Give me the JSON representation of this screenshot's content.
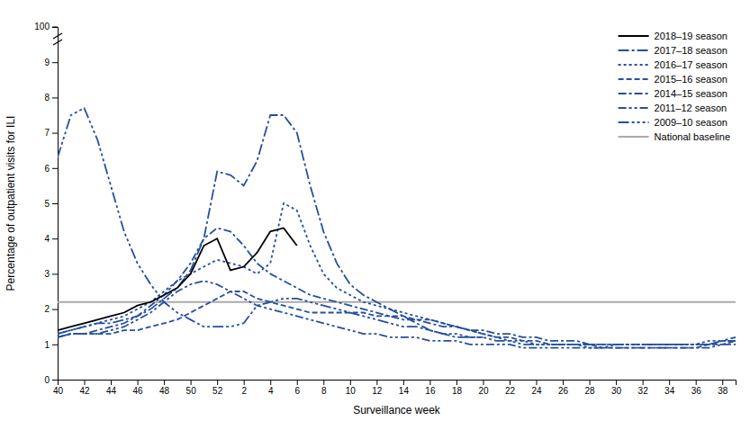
{
  "chart_data": {
    "type": "line",
    "x_label": "Surveillance week",
    "y_label": "Percentage of outpatient visits for ILI",
    "categories": [
      "40",
      null,
      "42",
      null,
      "44",
      null,
      "46",
      null,
      "48",
      null,
      "50",
      null,
      "52",
      null,
      "2",
      null,
      "4",
      null,
      "6",
      null,
      "8",
      null,
      "10",
      null,
      "12",
      null,
      "14",
      null,
      "16",
      null,
      "18",
      null,
      "20",
      null,
      "22",
      null,
      "24",
      null,
      "26",
      null,
      "28",
      null,
      "30",
      null,
      "32",
      null,
      "34",
      null,
      "36",
      null,
      "38",
      null
    ],
    "ylim": [
      0,
      10
    ],
    "yticks": [
      0,
      1,
      2,
      3,
      4,
      5,
      6,
      7,
      8,
      9
    ],
    "grid": false,
    "legend": "upper right",
    "series": [
      {
        "name": "2009–10 season",
        "color": "#254fa0",
        "line_style": "long-dash-dot-dot-dot",
        "values": [
          6.3,
          7.5,
          7.7,
          6.8,
          5.5,
          4.2,
          3.3,
          2.7,
          2.2,
          1.9,
          1.7,
          1.5,
          1.5,
          1.5,
          1.6,
          2.1,
          2.2,
          2.3,
          2.3,
          2.2,
          2.1,
          2.0,
          1.9,
          1.8,
          1.7,
          1.6,
          1.5,
          1.5,
          1.4,
          1.3,
          1.3,
          1.2,
          1.2,
          1.1,
          1.1,
          1.0,
          1.0,
          1.0,
          1.0,
          1.0,
          1.0,
          1.0,
          1.0,
          1.0,
          1.0,
          1.0,
          1.0,
          1.0,
          1.0,
          1.0,
          1.1,
          1.2
        ]
      },
      {
        "name": "2011–12 season",
        "color": "#254fa0",
        "line_style": "dash-dot-dot",
        "values": [
          1.2,
          1.3,
          1.3,
          1.3,
          1.4,
          1.5,
          1.7,
          1.9,
          2.2,
          2.5,
          2.7,
          2.8,
          2.7,
          2.5,
          2.3,
          2.1,
          2.0,
          1.9,
          1.8,
          1.7,
          1.6,
          1.5,
          1.4,
          1.3,
          1.3,
          1.2,
          1.2,
          1.2,
          1.1,
          1.1,
          1.1,
          1.0,
          1.0,
          1.0,
          1.0,
          0.9,
          0.9,
          0.9,
          0.9,
          0.9,
          0.9,
          0.9,
          0.9,
          0.9,
          0.9,
          0.9,
          0.9,
          0.9,
          0.9,
          0.9,
          1.0,
          1.0
        ]
      },
      {
        "name": "2014–15 season",
        "color": "#254fa0",
        "line_style": "dash-dot",
        "values": [
          1.2,
          1.3,
          1.3,
          1.4,
          1.5,
          1.6,
          1.8,
          2.1,
          2.4,
          2.8,
          3.3,
          4.0,
          4.3,
          4.2,
          3.8,
          3.3,
          3.0,
          2.8,
          2.6,
          2.4,
          2.3,
          2.2,
          2.1,
          2.0,
          1.9,
          1.8,
          1.7,
          1.7,
          1.6,
          1.5,
          1.5,
          1.4,
          1.4,
          1.3,
          1.3,
          1.2,
          1.2,
          1.1,
          1.1,
          1.1,
          1.0,
          1.0,
          1.0,
          1.0,
          1.0,
          1.0,
          1.0,
          1.0,
          1.0,
          1.0,
          1.1,
          1.1
        ]
      },
      {
        "name": "2015–16 season",
        "color": "#254fa0",
        "line_style": "dashed",
        "values": [
          1.2,
          1.3,
          1.3,
          1.3,
          1.3,
          1.4,
          1.4,
          1.5,
          1.6,
          1.7,
          1.9,
          2.1,
          2.3,
          2.5,
          2.5,
          2.3,
          2.2,
          2.1,
          2.0,
          1.9,
          1.9,
          1.9,
          1.9,
          1.9,
          1.8,
          1.8,
          1.8,
          1.7,
          1.7,
          1.6,
          1.5,
          1.4,
          1.3,
          1.2,
          1.2,
          1.1,
          1.1,
          1.0,
          1.0,
          1.0,
          1.0,
          0.9,
          0.9,
          0.9,
          0.9,
          0.9,
          0.9,
          0.9,
          0.9,
          1.0,
          1.0,
          1.1
        ]
      },
      {
        "name": "2016–17 season",
        "color": "#254fa0",
        "line_style": "dotted",
        "values": [
          1.3,
          1.4,
          1.5,
          1.6,
          1.7,
          1.8,
          2.0,
          2.2,
          2.5,
          2.8,
          3.0,
          3.2,
          3.4,
          3.3,
          3.2,
          3.0,
          3.3,
          5.0,
          4.8,
          3.8,
          3.0,
          2.6,
          2.4,
          2.2,
          2.1,
          2.0,
          1.9,
          1.8,
          1.7,
          1.6,
          1.5,
          1.4,
          1.3,
          1.2,
          1.1,
          1.1,
          1.0,
          1.0,
          1.0,
          1.0,
          0.9,
          0.9,
          1.0,
          1.0,
          1.0,
          1.0,
          1.0,
          1.0,
          1.0,
          1.1,
          1.1,
          1.1
        ]
      },
      {
        "name": "2017–18 season",
        "color": "#254fa0",
        "line_style": "long-dash-dot",
        "values": [
          1.3,
          1.4,
          1.5,
          1.6,
          1.6,
          1.7,
          1.8,
          2.0,
          2.3,
          2.6,
          3.1,
          4.0,
          5.9,
          5.8,
          5.5,
          6.2,
          7.5,
          7.5,
          7.0,
          5.5,
          4.2,
          3.3,
          2.7,
          2.4,
          2.2,
          2.0,
          1.8,
          1.6,
          1.4,
          1.3,
          1.2,
          1.2,
          1.2,
          null,
          null,
          null,
          null,
          null,
          null,
          null,
          null,
          null,
          null,
          null,
          null,
          null,
          null,
          null,
          null,
          null,
          null,
          null
        ]
      },
      {
        "name": "2018–19 season",
        "color": "#000000",
        "line_style": "solid",
        "values": [
          1.4,
          1.5,
          1.6,
          1.7,
          1.8,
          1.9,
          2.1,
          2.2,
          2.4,
          2.6,
          3.0,
          3.8,
          4.0,
          3.1,
          3.2,
          3.6,
          4.2,
          4.3,
          3.8,
          null,
          null,
          null,
          null,
          null,
          null,
          null,
          null,
          null,
          null,
          null,
          null,
          null,
          null,
          null,
          null,
          null,
          null,
          null,
          null,
          null,
          null,
          null,
          null,
          null,
          null,
          null,
          null,
          null,
          null,
          null,
          null,
          null
        ]
      }
    ],
    "reference_lines": [
      {
        "name": "National baseline",
        "y": 2.2,
        "color": "#aaaaaa"
      }
    ],
    "annotations": [
      {
        "text": "100"
      }
    ]
  }
}
